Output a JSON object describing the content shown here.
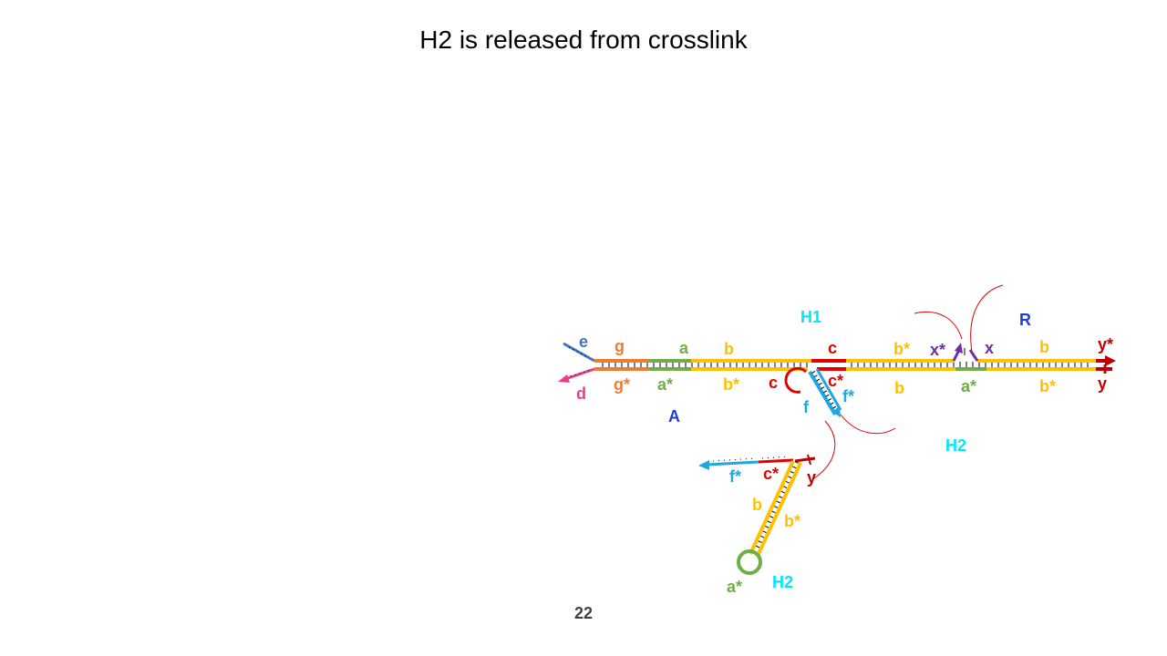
{
  "slide": {
    "title": "H2 is released from crosslink",
    "page_number": "22"
  },
  "labels": {
    "e": "e",
    "d": "d",
    "g": "g",
    "g_star": "g*",
    "a_top": "a",
    "a_star_bottom": "a*",
    "b_top": "b",
    "b_star_bottom": "b*",
    "c_top": "c",
    "c_loop": "c",
    "c_star": "c*",
    "f_star": "f*",
    "f": "f",
    "b_star_right_top": "b*",
    "b_right_bottom": "b",
    "x_star": "x*",
    "x": "x",
    "a_star_right": "a*",
    "b_far_top": "b",
    "b_star_far_bottom": "b*",
    "y_star": "y*",
    "y": "y",
    "H1": "H1",
    "R": "R",
    "A": "A",
    "H2_top": "H2",
    "f_star_bottom": "f*",
    "c_star_bottom": "c*",
    "y_bottom": "y",
    "b_hairpin": "b",
    "b_star_hairpin": "b*",
    "a_star_loop": "a*",
    "H2_bottom": "H2"
  },
  "colors": {
    "blue_e": "#4472C4",
    "pink_d": "#E83E8C",
    "orange_g": "#ED7D31",
    "green_a": "#70AD47",
    "yellow_b": "#FFC000",
    "red_c": "#E00000",
    "cyan_f": "#1FA8E0",
    "purple_x": "#7030A0",
    "darkred_y": "#C00000",
    "label_blue": "#1F3FCF",
    "label_cyan": "#00E5FF"
  }
}
